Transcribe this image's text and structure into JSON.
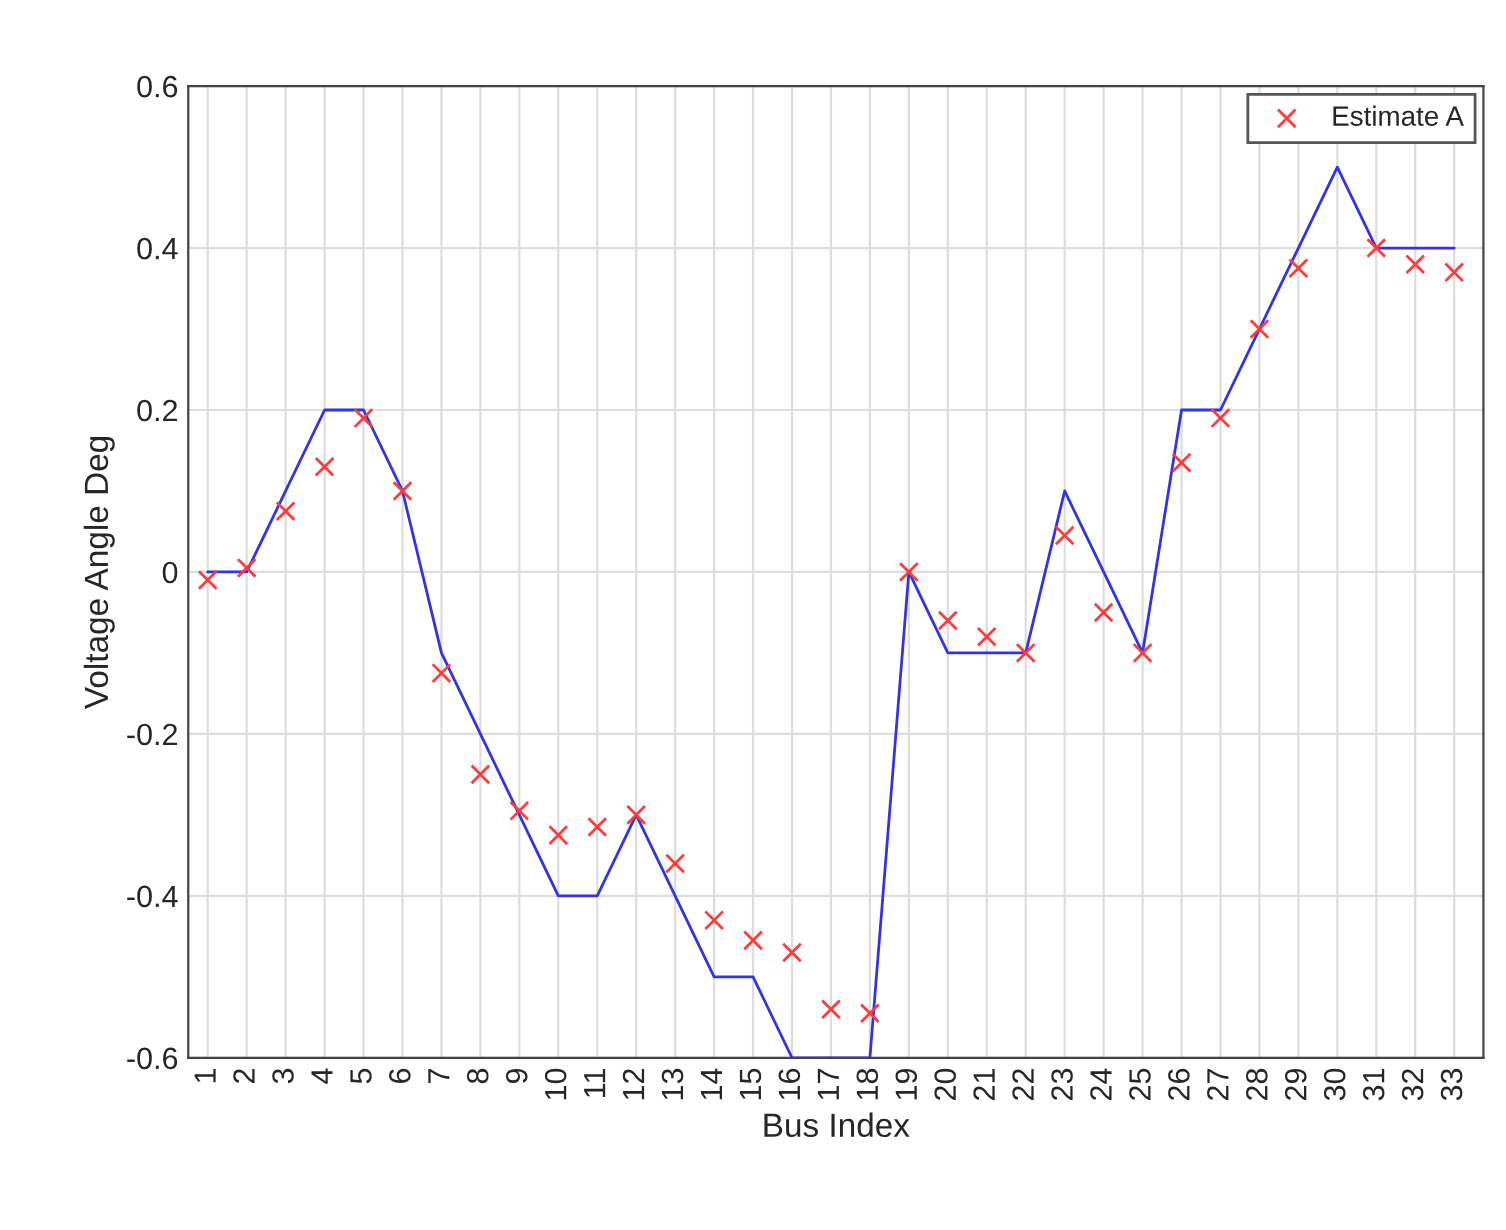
{
  "chart_data": {
    "type": "line",
    "xlabel": "Bus Index",
    "ylabel": "Voltage Angle Deg",
    "x": [
      1,
      2,
      3,
      4,
      5,
      6,
      7,
      8,
      9,
      10,
      11,
      12,
      13,
      14,
      15,
      16,
      17,
      18,
      19,
      20,
      21,
      22,
      23,
      24,
      25,
      26,
      27,
      28,
      29,
      30,
      31,
      32,
      33
    ],
    "series": [
      {
        "name": "Estimate A",
        "type": "scatter",
        "marker": "cross",
        "color": "#ff3b3b",
        "values": [
          -0.01,
          0.005,
          0.075,
          0.13,
          0.19,
          0.1,
          -0.125,
          -0.25,
          -0.295,
          -0.325,
          -0.315,
          -0.3,
          -0.36,
          -0.43,
          -0.455,
          -0.47,
          -0.54,
          -0.545,
          0,
          -0.06,
          -0.08,
          -0.1,
          0.045,
          -0.05,
          -0.1,
          0.135,
          0.19,
          0.3,
          0.375,
          null,
          0.4,
          0.38,
          0.37
        ]
      },
      {
        "color": "#3333e6",
        "values": [
          0,
          0,
          0.1,
          0.2,
          0.2,
          0.1,
          -0.1,
          -0.2,
          -0.3,
          -0.4,
          -0.4,
          -0.3,
          -0.4,
          -0.5,
          -0.5,
          -0.6,
          -0.6,
          -0.6,
          0,
          -0.1,
          -0.1,
          -0.1,
          0.1,
          0,
          -0.1,
          0.2,
          0.2,
          0.3,
          0.4,
          0.5,
          0.4,
          0.4,
          0.4
        ]
      }
    ],
    "xlim": [
      0.5,
      33.75
    ],
    "xticks": [
      1,
      2,
      3,
      4,
      5,
      6,
      7,
      8,
      9,
      10,
      11,
      12,
      13,
      14,
      15,
      16,
      17,
      18,
      19,
      20,
      21,
      22,
      23,
      24,
      25,
      26,
      27,
      28,
      29,
      30,
      31,
      32,
      33
    ],
    "ylim": [
      -0.6,
      0.6
    ],
    "yticks": [
      -0.6,
      -0.4,
      -0.2,
      0,
      0.2,
      0.4,
      0.6
    ],
    "grid": true,
    "legend": "top right"
  }
}
